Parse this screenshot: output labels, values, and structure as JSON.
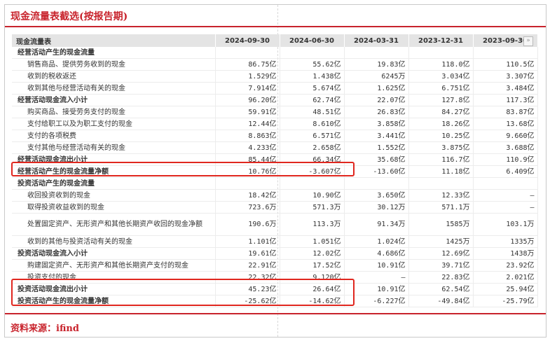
{
  "title": "现金流量表截选(按报告期)",
  "footer": "资料来源：ifind",
  "table": {
    "corner": "现金流量表",
    "periods": [
      "2024-09-30",
      "2024-06-30",
      "2024-03-31",
      "2023-12-31",
      "2023-09-30"
    ],
    "more_icon": "»",
    "rows": [
      {
        "label": "经营活动产生的现金流量",
        "type": "hdr",
        "values": [
          "",
          "",
          "",
          "",
          ""
        ]
      },
      {
        "label": "销售商品、提供劳务收到的现金",
        "type": "item",
        "values": [
          "86.75亿",
          "55.62亿",
          "19.83亿",
          "118.0亿",
          "110.5亿"
        ]
      },
      {
        "label": "收到的税收返还",
        "type": "item",
        "values": [
          "1.529亿",
          "1.438亿",
          "6245万",
          "3.034亿",
          "3.307亿"
        ]
      },
      {
        "label": "收到其他与经营活动有关的现金",
        "type": "item",
        "values": [
          "7.914亿",
          "5.674亿",
          "1.625亿",
          "6.751亿",
          "3.484亿"
        ]
      },
      {
        "label": "经营活动现金流入小计",
        "type": "hdr",
        "values": [
          "96.20亿",
          "62.74亿",
          "22.07亿",
          "127.8亿",
          "117.3亿"
        ]
      },
      {
        "label": "购买商品、接受劳务支付的现金",
        "type": "item",
        "values": [
          "59.91亿",
          "48.51亿",
          "26.83亿",
          "84.27亿",
          "83.87亿"
        ]
      },
      {
        "label": "支付给职工以及为职工支付的现金",
        "type": "item",
        "values": [
          "12.44亿",
          "8.610亿",
          "3.858亿",
          "18.26亿",
          "13.68亿"
        ]
      },
      {
        "label": "支付的各项税费",
        "type": "item",
        "values": [
          "8.863亿",
          "6.571亿",
          "3.441亿",
          "10.25亿",
          "9.660亿"
        ]
      },
      {
        "label": "支付其他与经营活动有关的现金",
        "type": "item",
        "values": [
          "4.233亿",
          "2.658亿",
          "1.552亿",
          "3.875亿",
          "3.688亿"
        ]
      },
      {
        "label": "经营活动现金流出小计",
        "type": "hdr",
        "values": [
          "85.44亿",
          "66.34亿",
          "35.68亿",
          "116.7亿",
          "110.9亿"
        ]
      },
      {
        "label": "经营活动产生的现金流量净额",
        "type": "hdr",
        "values": [
          "10.76亿",
          "-3.607亿",
          "-13.60亿",
          "11.18亿",
          "6.409亿"
        ]
      },
      {
        "label": "投资活动产生的现金流量",
        "type": "hdr",
        "values": [
          "",
          "",
          "",
          "",
          ""
        ]
      },
      {
        "label": "收回投资收到的现金",
        "type": "item",
        "values": [
          "18.42亿",
          "10.90亿",
          "3.650亿",
          "12.33亿",
          "—"
        ]
      },
      {
        "label": "取得投资收益收到的现金",
        "type": "item",
        "values": [
          "723.6万",
          "571.3万",
          "30.12万",
          "571.1万",
          "—"
        ]
      },
      {
        "label": "处置固定资产、无形资产和其他长期资产收回的现金净额",
        "type": "item tall",
        "values": [
          "190.6万",
          "113.3万",
          "91.34万",
          "1585万",
          "103.1万"
        ]
      },
      {
        "label": "收到的其他与投资活动有关的现金",
        "type": "item",
        "values": [
          "1.101亿",
          "1.051亿",
          "1.024亿",
          "1425万",
          "1335万"
        ]
      },
      {
        "label": "投资活动现金流入小计",
        "type": "hdr",
        "values": [
          "19.61亿",
          "12.02亿",
          "4.686亿",
          "12.69亿",
          "1438万"
        ]
      },
      {
        "label": "购建固定资产、无形资产和其他长期资产支付的现金",
        "type": "item",
        "values": [
          "22.91亿",
          "17.52亿",
          "10.91亿",
          "39.71亿",
          "23.92亿"
        ]
      },
      {
        "label": "投资支付的现金",
        "type": "item",
        "values": [
          "22.32亿",
          "9.120亿",
          "—",
          "22.83亿",
          "2.021亿"
        ]
      },
      {
        "label": "投资活动现金流出小计",
        "type": "hdr",
        "values": [
          "45.23亿",
          "26.64亿",
          "10.91亿",
          "62.54亿",
          "25.94亿"
        ]
      },
      {
        "label": "投资活动产生的现金流量净额",
        "type": "hdr",
        "values": [
          "-25.62亿",
          "-14.62亿",
          "-6.227亿",
          "-49.84亿",
          "-25.79亿"
        ]
      }
    ]
  },
  "highlight_color": "#e0271f",
  "accent_color": "#c8232c"
}
